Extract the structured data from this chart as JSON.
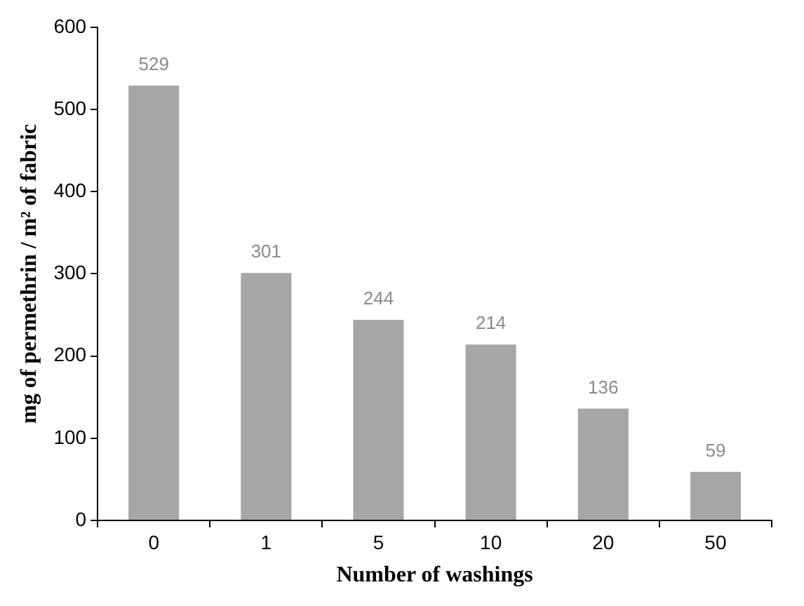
{
  "chart_data": {
    "type": "bar",
    "categories": [
      "0",
      "1",
      "5",
      "10",
      "20",
      "50"
    ],
    "values": [
      529,
      301,
      244,
      214,
      136,
      59
    ],
    "color": "#a6a6a6",
    "xlabel": "Number of washings",
    "ylabel": "mg of permethrin / m² of fabric",
    "ylim": [
      0,
      600
    ],
    "yticks": [
      0,
      100,
      200,
      300,
      400,
      500,
      600
    ],
    "data_labels": true,
    "grid": false,
    "legend": false
  }
}
